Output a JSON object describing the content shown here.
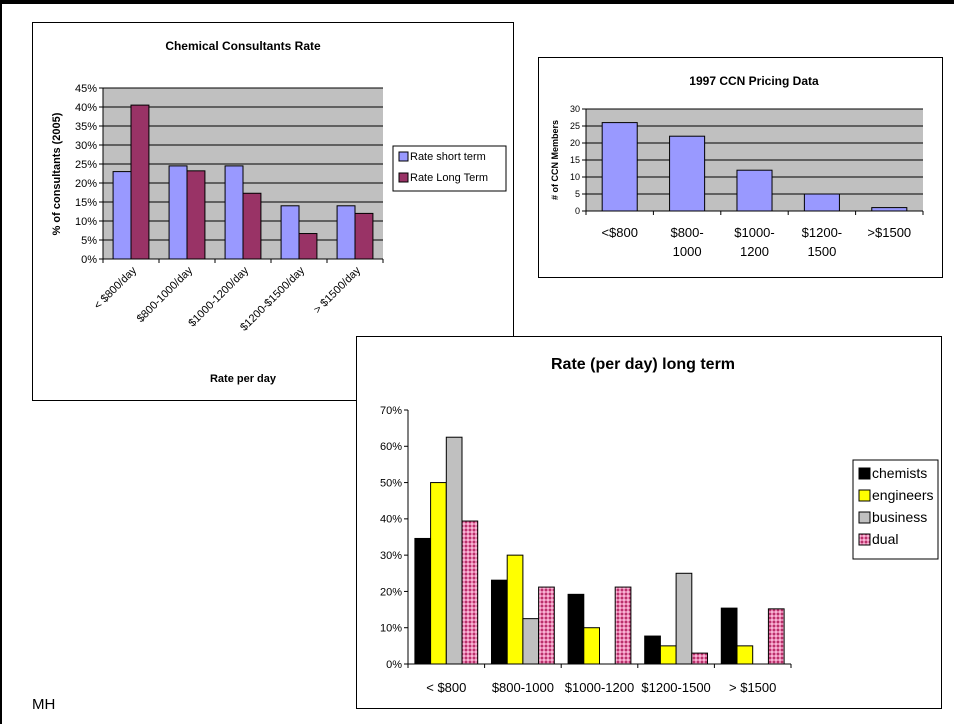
{
  "footer": {
    "initials": "MH"
  },
  "chart_data": [
    {
      "type": "bar",
      "title": "Chemical Consultants Rate",
      "xlabel": "Rate per day",
      "ylabel": "% of consultants (2005)",
      "ylim": [
        0,
        45
      ],
      "yticks": [
        "0%",
        "5%",
        "10%",
        "15%",
        "20%",
        "25%",
        "30%",
        "35%",
        "40%",
        "45%"
      ],
      "categories": [
        "< $800/day",
        "$800-1000/day",
        "$1000-1200/day",
        "$1200-$1500/day",
        "> $1500/day"
      ],
      "series": [
        {
          "name": "Rate short term",
          "color": "#9999ff",
          "values": [
            23,
            24.5,
            24.5,
            14,
            14
          ]
        },
        {
          "name": "Rate Long Term",
          "color": "#993366",
          "values": [
            40.5,
            23.2,
            17.3,
            6.7,
            12
          ]
        }
      ],
      "plot_background": "#c0c0c0",
      "grid": true,
      "legend": "right"
    },
    {
      "type": "bar",
      "title": "1997 CCN Pricing Data",
      "xlabel": "",
      "ylabel": "# of CCN Members",
      "ylim": [
        0,
        30
      ],
      "yticks": [
        "0",
        "5",
        "10",
        "15",
        "20",
        "25",
        "30"
      ],
      "categories": [
        [
          "<$800"
        ],
        [
          "$800-",
          "1000"
        ],
        [
          "$1000-",
          "1200"
        ],
        [
          "$1200-",
          "1500"
        ],
        [
          ">$1500"
        ]
      ],
      "series": [
        {
          "name": "",
          "color": "#9999ff",
          "values": [
            26,
            22,
            12,
            5,
            1
          ]
        }
      ],
      "plot_background": "#c0c0c0",
      "grid": true,
      "legend": "none"
    },
    {
      "type": "bar",
      "title": "Rate (per day) long term",
      "xlabel": "",
      "ylabel": "",
      "ylim": [
        0,
        70
      ],
      "yticks": [
        "0%",
        "10%",
        "20%",
        "30%",
        "40%",
        "50%",
        "60%",
        "70%"
      ],
      "categories": [
        "< $800",
        "$800-1000",
        "$1000-1200",
        "$1200-1500",
        "> $1500"
      ],
      "series": [
        {
          "name": "chemists",
          "color": "#000000",
          "values": [
            34.6,
            23.1,
            19.2,
            7.7,
            15.4
          ]
        },
        {
          "name": "engineers",
          "color": "#ffff00",
          "values": [
            50,
            30,
            10,
            5,
            5
          ]
        },
        {
          "name": "business",
          "color": "#c0c0c0",
          "values": [
            62.5,
            12.5,
            0,
            25,
            0
          ]
        },
        {
          "name": "dual",
          "color": "#e77fb0",
          "values": [
            39.4,
            21.2,
            21.2,
            3,
            15.2
          ]
        }
      ],
      "plot_background": "#ffffff",
      "grid": false,
      "legend": "right"
    }
  ]
}
